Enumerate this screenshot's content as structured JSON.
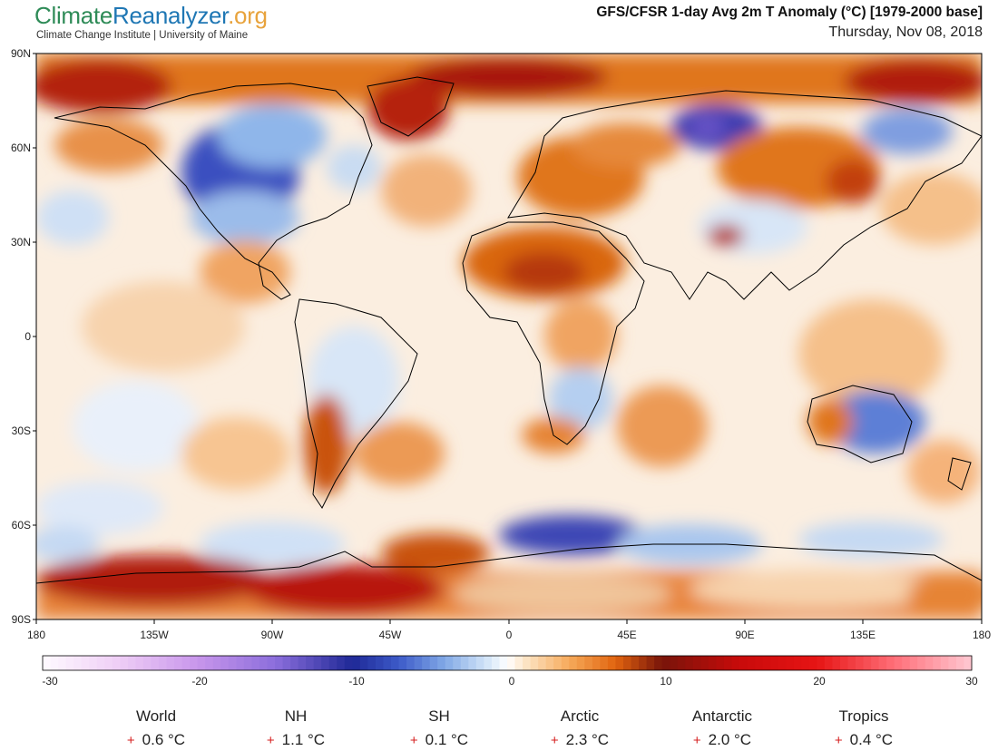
{
  "header": {
    "logo_part1": "Climate",
    "logo_part2": "Reanalyzer",
    "logo_part3": ".org",
    "subtitle": "Climate Change Institute | University of Maine",
    "title": "GFS/CFSR 1-day Avg 2m T Anomaly (°C) [1979-2000 base]",
    "date": "Thursday, Nov 08, 2018"
  },
  "map": {
    "lat_labels": [
      "90N",
      "60N",
      "30N",
      "0",
      "30S",
      "60S",
      "90S"
    ],
    "lon_labels": [
      "180",
      "135W",
      "90W",
      "45W",
      "0",
      "45E",
      "90E",
      "135E",
      "180"
    ]
  },
  "colorbar": {
    "ticks": [
      "-30",
      "-20",
      "-10",
      "0",
      "10",
      "20",
      "30"
    ],
    "range": [
      -30,
      30
    ],
    "colors": {
      "deep_cold": "#2a2d8f",
      "cold": "#4a6fd0",
      "cool": "#b9d6f2",
      "neutral": "#ffffff",
      "warm": "#f5b370",
      "hot": "#e0620d",
      "very_hot": "#b01212",
      "extreme": "#ff9aa8"
    }
  },
  "stats": [
    {
      "region": "World",
      "sign": "+",
      "value": "0.6 °C"
    },
    {
      "region": "NH",
      "sign": "+",
      "value": "1.1 °C"
    },
    {
      "region": "SH",
      "sign": "+",
      "value": "0.1 °C"
    },
    {
      "region": "Arctic",
      "sign": "+",
      "value": "2.3 °C"
    },
    {
      "region": "Antarctic",
      "sign": "+",
      "value": "2.0 °C"
    },
    {
      "region": "Tropics",
      "sign": "+",
      "value": "0.4 °C"
    }
  ]
}
